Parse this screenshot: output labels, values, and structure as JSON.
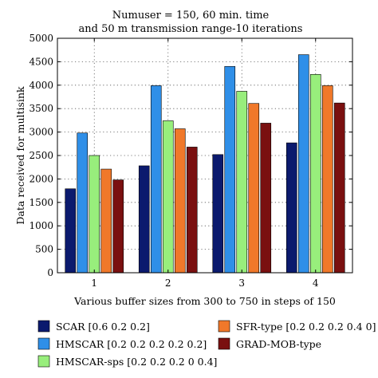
{
  "chart_data": {
    "type": "bar",
    "title_lines": [
      "Numuser = 150, 60 min. time",
      "and 50 m transmission range-10 iterations"
    ],
    "xlabel": "Various buffer sizes from 300 to 750 in steps of 150",
    "ylabel": "Data received for multisink",
    "categories": [
      "1",
      "2",
      "3",
      "4"
    ],
    "ylim": [
      0,
      5000
    ],
    "yticks": [
      0,
      500,
      1000,
      1500,
      2000,
      2500,
      3000,
      3500,
      4000,
      4500,
      5000
    ],
    "grid": true,
    "legend_placement": "bottom",
    "series": [
      {
        "name": "SCAR [0.6 0.2 0.2]",
        "color": "#0b1a6e",
        "values": [
          1790,
          2280,
          2520,
          2770
        ]
      },
      {
        "name": "HMSCAR [0.2 0.2 0.2 0.2 0.2]",
        "color": "#2f8fe8",
        "values": [
          2980,
          3990,
          4400,
          4650
        ]
      },
      {
        "name": "HMSCAR-sps [0.2 0.2 0.2 0 0.4]",
        "color": "#98ee7c",
        "values": [
          2500,
          3240,
          3870,
          4230
        ]
      },
      {
        "name": "SFR-type [0.2 0.2 0.2 0.4 0]",
        "color": "#f0782a",
        "values": [
          2210,
          3070,
          3610,
          3990
        ]
      },
      {
        "name": "GRAD-MOB-type",
        "color": "#7a1010",
        "values": [
          1980,
          2680,
          3190,
          3620
        ]
      }
    ]
  }
}
